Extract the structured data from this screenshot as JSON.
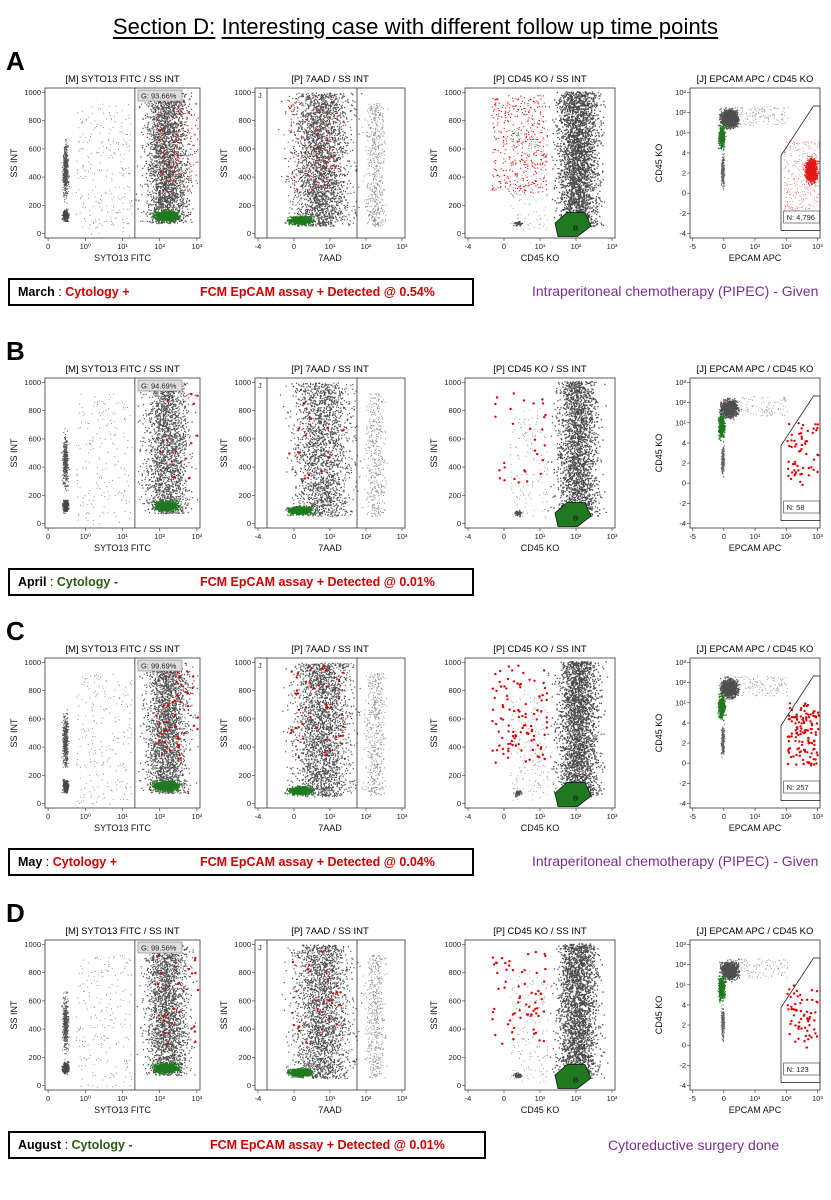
{
  "title": {
    "prefix": "Section D:",
    "text": "Interesting case with different follow up time points"
  },
  "colors": {
    "gray": "#3c3c3c",
    "red": "#e00000",
    "green": "#1f7a1f",
    "purple": "#7a2d8f",
    "negGreen": "#2c5a10"
  },
  "plot_titles": [
    "[M] SYTO13 FITC / SS INT",
    "[P] 7AAD / SS INT",
    "[P] CD45 KO / SS INT",
    "[J] EPCAM APC / CD45 KO"
  ],
  "axis_labels": {
    "p1": {
      "x": "SYTO13 FITC",
      "y": "SS INT"
    },
    "p2": {
      "x": "7AAD",
      "y": "SS INT"
    },
    "p3": {
      "x": "CD45 KO",
      "y": "SS INT"
    },
    "p4": {
      "x": "EPCAM APC",
      "y": "CD45 KO"
    }
  },
  "ticks": {
    "ss": [
      "0",
      "200",
      "400",
      "600",
      "800",
      "1000"
    ],
    "syto": [
      "0",
      "10⁰",
      "10¹",
      "10²",
      "10³"
    ],
    "aad": [
      "-4",
      "0",
      "10¹",
      "10²",
      "10³"
    ],
    "cd45": [
      "-4",
      "0",
      "10¹",
      "10²",
      "10³"
    ],
    "epcam": [
      "-5",
      "0",
      "10¹",
      "10²",
      "10³"
    ],
    "cd45y": [
      "-4",
      "-2",
      "0",
      "2",
      "4",
      "10¹",
      "10²",
      "10³"
    ]
  },
  "gate_labels": {
    "j": "J",
    "b": "B"
  },
  "sections": [
    {
      "letter": "A",
      "month": "March",
      "cytology": "Cytology +",
      "cytology_positive": true,
      "assay": "FCM EpCAM assay +  Detected @ 0.54%",
      "g_percent": "G: 93.66%",
      "n_count": "N: 4,796",
      "therapy": "Intraperitoneal chemotherapy (PIPEC) - Given"
    },
    {
      "letter": "B",
      "month": "April",
      "cytology": "Cytology -",
      "cytology_positive": false,
      "assay": "FCM EpCAM assay + Detected @ 0.01%",
      "g_percent": "G: 94.69%",
      "n_count": "N: 58",
      "therapy": ""
    },
    {
      "letter": "C",
      "month": "May",
      "cytology": "Cytology +",
      "cytology_positive": true,
      "assay": "FCM EpCAM assay +  Detected @ 0.04%",
      "g_percent": "G: 99.69%",
      "n_count": "N: 257",
      "therapy": "Intraperitoneal chemotherapy (PIPEC) - Given"
    },
    {
      "letter": "D",
      "month": "August",
      "cytology": "Cytology -",
      "cytology_positive": false,
      "assay": "FCM EpCAM assay + Detected @ 0.01%",
      "g_percent": "G: 99.56%",
      "n_count": "N: 123",
      "therapy": "Cytoreductive surgery done"
    }
  ],
  "chart_data": [
    {
      "type": "scatter",
      "panel": "A",
      "title": "Section D: Interesting case with different follow up time points",
      "gate_G_percent": 93.66,
      "epcam_positive_count": 4796,
      "detected_percent": 0.54,
      "ylim": [
        0,
        1000
      ]
    },
    {
      "type": "scatter",
      "panel": "B",
      "gate_G_percent": 94.69,
      "epcam_positive_count": 58,
      "detected_percent": 0.01,
      "ylim": [
        0,
        1000
      ]
    },
    {
      "type": "scatter",
      "panel": "C",
      "gate_G_percent": 99.69,
      "epcam_positive_count": 257,
      "detected_percent": 0.04,
      "ylim": [
        0,
        1000
      ]
    },
    {
      "type": "scatter",
      "panel": "D",
      "gate_G_percent": 99.56,
      "epcam_positive_count": 123,
      "detected_percent": 0.01,
      "ylim": [
        0,
        1000
      ]
    }
  ]
}
